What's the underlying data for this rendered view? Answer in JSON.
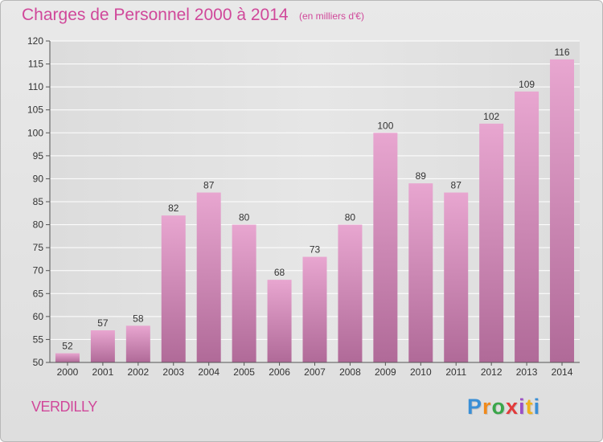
{
  "title": "Charges de Personnel 2000 à 2014",
  "subtitle": "(en milliers d'€)",
  "commune": "VERDILLY",
  "logo": {
    "letters": [
      "P",
      "r",
      "o",
      "x",
      "i",
      "t",
      "i"
    ],
    "colors": [
      "#3a8fd6",
      "#f08a1c",
      "#3aa64a",
      "#e23b3b",
      "#9b4fc6",
      "#f0b21c",
      "#3a8fd6"
    ]
  },
  "colors": {
    "bar_light": "#e8a6d0",
    "bar_dark": "#b06a98",
    "title": "#d0489a"
  },
  "chart_data": {
    "type": "bar",
    "categories": [
      "2000",
      "2001",
      "2002",
      "2003",
      "2004",
      "2005",
      "2006",
      "2007",
      "2008",
      "2009",
      "2010",
      "2011",
      "2012",
      "2013",
      "2014"
    ],
    "values": [
      52,
      57,
      58,
      82,
      87,
      80,
      68,
      73,
      80,
      100,
      89,
      87,
      102,
      109,
      116
    ],
    "ylim": [
      50,
      120
    ],
    "yticks": [
      50,
      55,
      60,
      65,
      70,
      75,
      80,
      85,
      90,
      95,
      100,
      105,
      110,
      115,
      120
    ],
    "grid": true,
    "xlabel": "",
    "ylabel": ""
  }
}
